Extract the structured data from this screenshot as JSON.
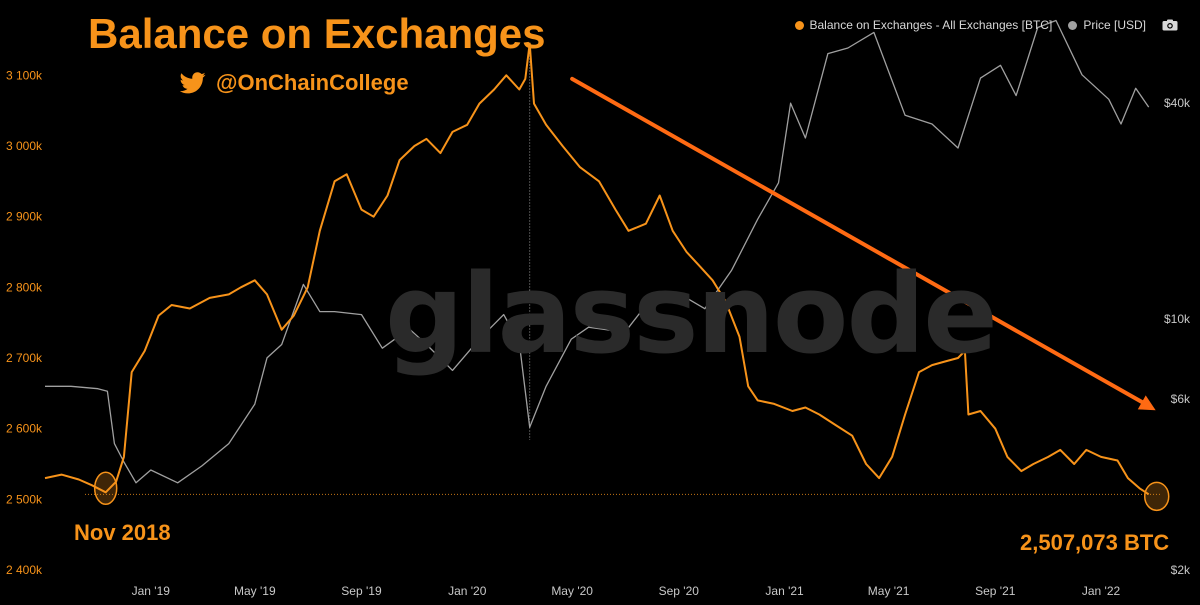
{
  "title": "Balance on Exchanges",
  "twitter_handle": "@OnChainCollege",
  "watermark": "glassnode",
  "legend": {
    "balance_label": "Balance on Exchanges - All Exchanges [BTC]",
    "price_label": "Price [USD]"
  },
  "annotations": {
    "start_label": "Nov 2018",
    "end_label": "2,507,073 BTC"
  },
  "colors": {
    "balance": "#f7931a",
    "price": "#a0a0a0",
    "background": "#000000",
    "axis_text": "#c8c8c8"
  },
  "chart_data": {
    "type": "line",
    "x_ticks": [
      "Jan '19",
      "May '19",
      "Sep '19",
      "Jan '20",
      "May '20",
      "Sep '20",
      "Jan '21",
      "May '21",
      "Sep '21",
      "Jan '22"
    ],
    "x_tick_dates": [
      "2019-01-01",
      "2019-05-01",
      "2019-09-01",
      "2020-01-01",
      "2020-05-01",
      "2020-09-01",
      "2021-01-01",
      "2021-05-01",
      "2021-09-01",
      "2022-01-01"
    ],
    "xlim": [
      "2018-09-01",
      "2022-03-10"
    ],
    "y_left_ticks": [
      "2 400k",
      "2 500k",
      "2 600k",
      "2 700k",
      "2 800k",
      "2 900k",
      "3 000k",
      "3 100k"
    ],
    "y_left_values": [
      2400000,
      2500000,
      2600000,
      2700000,
      2800000,
      2900000,
      3000000,
      3100000
    ],
    "ylim_left": [
      2400000,
      3150000
    ],
    "y_right_ticks": [
      "$2k",
      "$6k",
      "$10k",
      "$40k"
    ],
    "y_right_values": [
      2000,
      6000,
      10000,
      40000
    ],
    "y_right_scale": "log",
    "ylim_right": [
      2000,
      60000
    ],
    "series": [
      {
        "name": "Balance on Exchanges - All Exchanges [BTC]",
        "axis": "left",
        "points": [
          [
            "2018-09-01",
            2530000
          ],
          [
            "2018-09-20",
            2535000
          ],
          [
            "2018-10-10",
            2528000
          ],
          [
            "2018-10-25",
            2520000
          ],
          [
            "2018-11-10",
            2510000
          ],
          [
            "2018-11-22",
            2525000
          ],
          [
            "2018-12-01",
            2560000
          ],
          [
            "2018-12-10",
            2680000
          ],
          [
            "2018-12-25",
            2710000
          ],
          [
            "2019-01-10",
            2760000
          ],
          [
            "2019-01-25",
            2775000
          ],
          [
            "2019-02-15",
            2770000
          ],
          [
            "2019-03-10",
            2785000
          ],
          [
            "2019-04-01",
            2790000
          ],
          [
            "2019-04-15",
            2800000
          ],
          [
            "2019-05-01",
            2810000
          ],
          [
            "2019-05-15",
            2790000
          ],
          [
            "2019-06-01",
            2740000
          ],
          [
            "2019-06-15",
            2760000
          ],
          [
            "2019-07-01",
            2800000
          ],
          [
            "2019-07-15",
            2880000
          ],
          [
            "2019-08-01",
            2950000
          ],
          [
            "2019-08-15",
            2960000
          ],
          [
            "2019-09-01",
            2910000
          ],
          [
            "2019-09-15",
            2900000
          ],
          [
            "2019-10-01",
            2930000
          ],
          [
            "2019-10-15",
            2980000
          ],
          [
            "2019-11-01",
            3000000
          ],
          [
            "2019-11-15",
            3010000
          ],
          [
            "2019-12-01",
            2990000
          ],
          [
            "2019-12-15",
            3020000
          ],
          [
            "2020-01-01",
            3030000
          ],
          [
            "2020-01-15",
            3060000
          ],
          [
            "2020-02-01",
            3080000
          ],
          [
            "2020-02-15",
            3100000
          ],
          [
            "2020-03-01",
            3080000
          ],
          [
            "2020-03-08",
            3095000
          ],
          [
            "2020-03-13",
            3145000
          ],
          [
            "2020-03-18",
            3060000
          ],
          [
            "2020-04-01",
            3030000
          ],
          [
            "2020-04-20",
            3000000
          ],
          [
            "2020-05-10",
            2970000
          ],
          [
            "2020-06-01",
            2950000
          ],
          [
            "2020-06-20",
            2910000
          ],
          [
            "2020-07-05",
            2880000
          ],
          [
            "2020-07-25",
            2890000
          ],
          [
            "2020-08-10",
            2930000
          ],
          [
            "2020-08-25",
            2880000
          ],
          [
            "2020-09-10",
            2850000
          ],
          [
            "2020-09-25",
            2830000
          ],
          [
            "2020-10-10",
            2810000
          ],
          [
            "2020-10-25",
            2780000
          ],
          [
            "2020-11-10",
            2730000
          ],
          [
            "2020-11-20",
            2660000
          ],
          [
            "2020-12-01",
            2640000
          ],
          [
            "2020-12-20",
            2635000
          ],
          [
            "2021-01-10",
            2625000
          ],
          [
            "2021-01-25",
            2630000
          ],
          [
            "2021-02-10",
            2620000
          ],
          [
            "2021-03-01",
            2605000
          ],
          [
            "2021-03-20",
            2590000
          ],
          [
            "2021-04-05",
            2550000
          ],
          [
            "2021-04-20",
            2530000
          ],
          [
            "2021-05-05",
            2560000
          ],
          [
            "2021-05-20",
            2620000
          ],
          [
            "2021-06-05",
            2680000
          ],
          [
            "2021-06-20",
            2690000
          ],
          [
            "2021-07-05",
            2695000
          ],
          [
            "2021-07-20",
            2700000
          ],
          [
            "2021-07-28",
            2710000
          ],
          [
            "2021-08-01",
            2620000
          ],
          [
            "2021-08-15",
            2625000
          ],
          [
            "2021-09-01",
            2600000
          ],
          [
            "2021-09-15",
            2560000
          ],
          [
            "2021-10-01",
            2540000
          ],
          [
            "2021-10-15",
            2550000
          ],
          [
            "2021-11-01",
            2560000
          ],
          [
            "2021-11-15",
            2570000
          ],
          [
            "2021-12-01",
            2550000
          ],
          [
            "2021-12-15",
            2570000
          ],
          [
            "2022-01-01",
            2560000
          ],
          [
            "2022-01-20",
            2555000
          ],
          [
            "2022-02-01",
            2530000
          ],
          [
            "2022-02-15",
            2515000
          ],
          [
            "2022-02-25",
            2507073
          ]
        ]
      },
      {
        "name": "Price [USD]",
        "axis": "right",
        "points": [
          [
            "2018-09-01",
            6500
          ],
          [
            "2018-10-01",
            6500
          ],
          [
            "2018-11-01",
            6400
          ],
          [
            "2018-11-12",
            6300
          ],
          [
            "2018-11-20",
            4500
          ],
          [
            "2018-12-01",
            4000
          ],
          [
            "2018-12-15",
            3500
          ],
          [
            "2019-01-01",
            3800
          ],
          [
            "2019-02-01",
            3500
          ],
          [
            "2019-03-01",
            3900
          ],
          [
            "2019-04-01",
            4500
          ],
          [
            "2019-05-01",
            5800
          ],
          [
            "2019-05-15",
            7800
          ],
          [
            "2019-06-01",
            8500
          ],
          [
            "2019-06-26",
            12500
          ],
          [
            "2019-07-15",
            10500
          ],
          [
            "2019-08-01",
            10500
          ],
          [
            "2019-09-01",
            10300
          ],
          [
            "2019-09-25",
            8300
          ],
          [
            "2019-10-26",
            9400
          ],
          [
            "2019-11-15",
            8500
          ],
          [
            "2019-12-15",
            7200
          ],
          [
            "2020-01-15",
            8800
          ],
          [
            "2020-02-12",
            10300
          ],
          [
            "2020-03-01",
            8600
          ],
          [
            "2020-03-13",
            5000
          ],
          [
            "2020-04-01",
            6500
          ],
          [
            "2020-04-30",
            8800
          ],
          [
            "2020-05-20",
            9500
          ],
          [
            "2020-07-01",
            9200
          ],
          [
            "2020-08-01",
            11500
          ],
          [
            "2020-09-01",
            11800
          ],
          [
            "2020-10-01",
            10700
          ],
          [
            "2020-11-01",
            13700
          ],
          [
            "2020-12-01",
            19000
          ],
          [
            "2020-12-25",
            24000
          ],
          [
            "2021-01-08",
            40000
          ],
          [
            "2021-01-25",
            32000
          ],
          [
            "2021-02-20",
            55000
          ],
          [
            "2021-03-15",
            57000
          ],
          [
            "2021-04-14",
            63000
          ],
          [
            "2021-05-20",
            37000
          ],
          [
            "2021-06-20",
            35000
          ],
          [
            "2021-07-20",
            30000
          ],
          [
            "2021-08-15",
            47000
          ],
          [
            "2021-09-07",
            51000
          ],
          [
            "2021-09-25",
            42000
          ],
          [
            "2021-10-20",
            65000
          ],
          [
            "2021-11-10",
            68000
          ],
          [
            "2021-12-10",
            48000
          ],
          [
            "2022-01-10",
            41000
          ],
          [
            "2022-01-24",
            35000
          ],
          [
            "2022-02-10",
            44000
          ],
          [
            "2022-02-25",
            39000
          ]
        ]
      }
    ],
    "reference_line": {
      "label": "Nov 2018 level",
      "y_value": 2507073
    },
    "trend_arrow": {
      "from": [
        "2020-05-01",
        3095000
      ],
      "to": [
        "2022-03-05",
        2626000
      ]
    }
  }
}
